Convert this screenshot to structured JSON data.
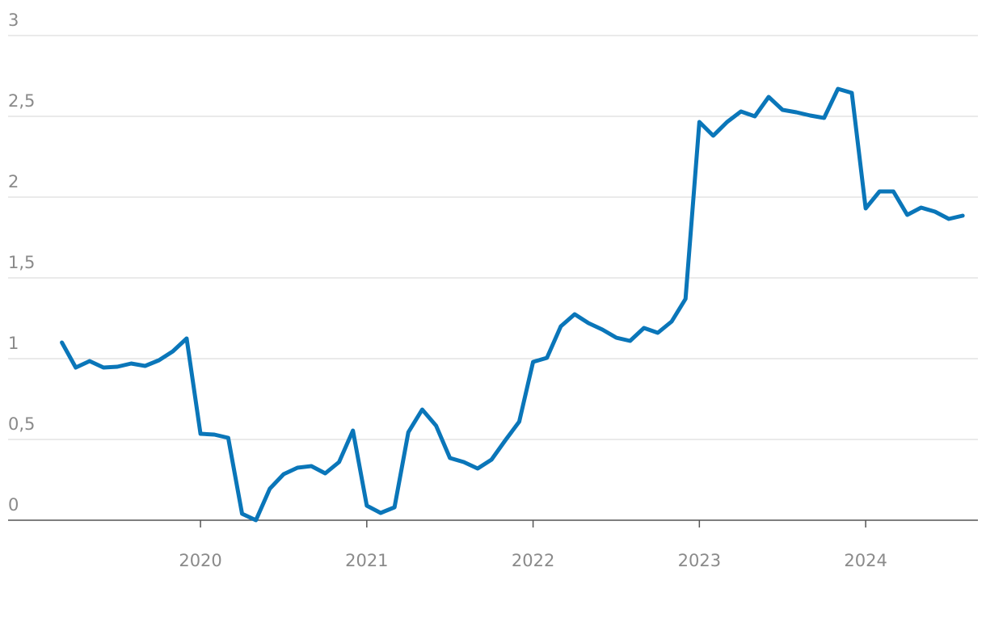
{
  "chart_data": {
    "type": "line",
    "x": [
      2019.1667,
      2019.25,
      2019.3333,
      2019.4167,
      2019.5,
      2019.5833,
      2019.6667,
      2019.75,
      2019.8333,
      2019.9167,
      2020.0,
      2020.0833,
      2020.1667,
      2020.25,
      2020.3333,
      2020.4167,
      2020.5,
      2020.5833,
      2020.6667,
      2020.75,
      2020.8333,
      2020.9167,
      2021.0,
      2021.0833,
      2021.1667,
      2021.25,
      2021.3333,
      2021.4167,
      2021.5,
      2021.5833,
      2021.6667,
      2021.75,
      2021.8333,
      2021.9167,
      2022.0,
      2022.0833,
      2022.1667,
      2022.25,
      2022.3333,
      2022.4167,
      2022.5,
      2022.5833,
      2022.6667,
      2022.75,
      2022.8333,
      2022.9167,
      2023.0,
      2023.0833,
      2023.1667,
      2023.25,
      2023.3333,
      2023.4167,
      2023.5,
      2023.5833,
      2023.6667,
      2023.75,
      2023.8333,
      2023.9167,
      2024.0,
      2024.0833,
      2024.1667,
      2024.25,
      2024.3333,
      2024.4167,
      2024.5,
      2024.5833
    ],
    "series": [
      {
        "color": "#0a76b9",
        "values": [
          1.1,
          0.945,
          0.985,
          0.945,
          0.95,
          0.97,
          0.955,
          0.99,
          1.045,
          1.125,
          0.535,
          0.53,
          0.51,
          0.04,
          0.0,
          0.195,
          0.285,
          0.325,
          0.335,
          0.29,
          0.36,
          0.555,
          0.09,
          0.045,
          0.08,
          0.545,
          0.685,
          0.585,
          0.385,
          0.36,
          0.32,
          0.375,
          0.495,
          0.61,
          0.98,
          1.005,
          1.2,
          1.275,
          1.22,
          1.18,
          1.13,
          1.11,
          1.19,
          1.16,
          1.23,
          1.37,
          2.465,
          2.38,
          2.465,
          2.53,
          2.5,
          2.62,
          2.54,
          2.525,
          2.505,
          2.49,
          2.67,
          2.645,
          1.93,
          2.035,
          2.035,
          1.89,
          1.935,
          1.91,
          1.865,
          1.885
        ]
      }
    ],
    "xlim": [
      2018.843,
      2024.675
    ],
    "xticks": [
      2020,
      2021,
      2022,
      2023,
      2024
    ],
    "ylim": [
      0,
      3
    ],
    "yticks": [
      0,
      {
        "value": 0.5,
        "label": "0,5"
      },
      1,
      {
        "value": 1.5,
        "label": "1,5"
      },
      2,
      {
        "value": 2.5,
        "label": "2,5"
      },
      3
    ],
    "grid": true
  }
}
